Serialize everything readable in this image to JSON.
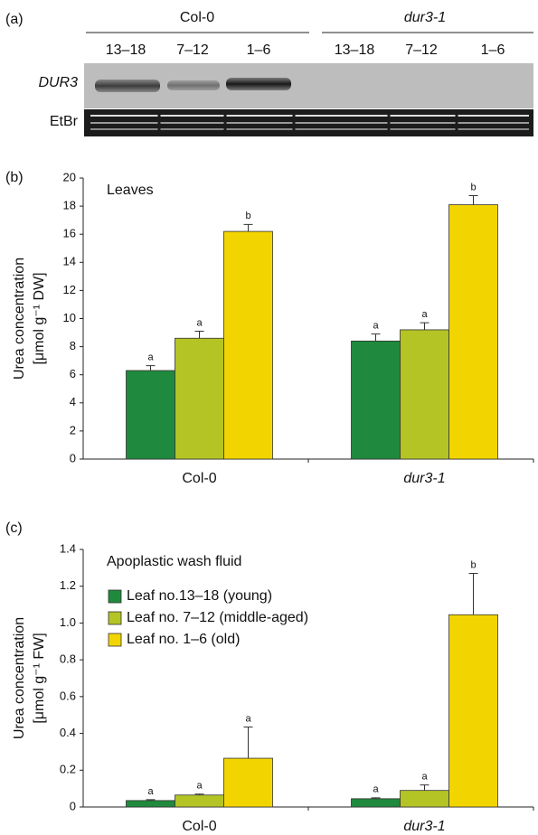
{
  "gel": {
    "panel_label": "(a)",
    "groups": [
      "Col-0",
      "dur3-1"
    ],
    "lanes": [
      "13–18",
      "7–12",
      "1–6",
      "13–18",
      "7–12",
      "1–6"
    ],
    "rows": [
      "DUR3",
      "EtBr"
    ]
  },
  "chart_data": [
    {
      "type": "bar",
      "panel_label": "(b)",
      "annotation": "Leaves",
      "ylabel": [
        "Urea concentration",
        "[μmol  g⁻¹ DW]"
      ],
      "categories": [
        "Col-0",
        "dur3-1"
      ],
      "series": [
        {
          "color": "#1f8a3d",
          "values": [
            6.3,
            8.4
          ],
          "errors": [
            0.35,
            0.5
          ],
          "significance": [
            "a",
            "a"
          ]
        },
        {
          "color": "#b4c425",
          "values": [
            8.6,
            9.2
          ],
          "errors": [
            0.5,
            0.5
          ],
          "significance": [
            "a",
            "a"
          ]
        },
        {
          "color": "#f2d500",
          "values": [
            16.2,
            18.1
          ],
          "errors": [
            0.5,
            0.65
          ],
          "significance": [
            "b",
            "b"
          ]
        }
      ],
      "ylim": [
        0,
        20
      ],
      "yticks": [
        0,
        2,
        4,
        6,
        8,
        10,
        12,
        14,
        16,
        18,
        20
      ],
      "grid": false
    },
    {
      "type": "bar",
      "panel_label": "(c)",
      "annotation": "Apoplastic wash fluid",
      "ylabel": [
        "Urea concentration",
        "[μmol g⁻¹ FW]"
      ],
      "categories": [
        "Col-0",
        "dur3-1"
      ],
      "series": [
        {
          "name": "Leaf no.13–18 (young)",
          "color": "#1f8a3d",
          "values": [
            0.035,
            0.045
          ],
          "errors": [
            0.005,
            0.005
          ],
          "significance": [
            "a",
            "a"
          ]
        },
        {
          "name": "Leaf no. 7–12 (middle-aged)",
          "color": "#b4c425",
          "values": [
            0.065,
            0.09
          ],
          "errors": [
            0.005,
            0.03
          ],
          "significance": [
            "a",
            "a"
          ]
        },
        {
          "name": "Leaf no. 1–6 (old)",
          "color": "#f2d500",
          "values": [
            0.265,
            1.045
          ],
          "errors": [
            0.17,
            0.225
          ],
          "significance": [
            "a",
            "b"
          ]
        }
      ],
      "ylim": [
        0,
        1.4
      ],
      "yticks": [
        0,
        0.2,
        0.4,
        0.6,
        0.8,
        {
          "value": 1,
          "label": "1.0"
        },
        1.2,
        1.4
      ],
      "grid": false
    }
  ]
}
